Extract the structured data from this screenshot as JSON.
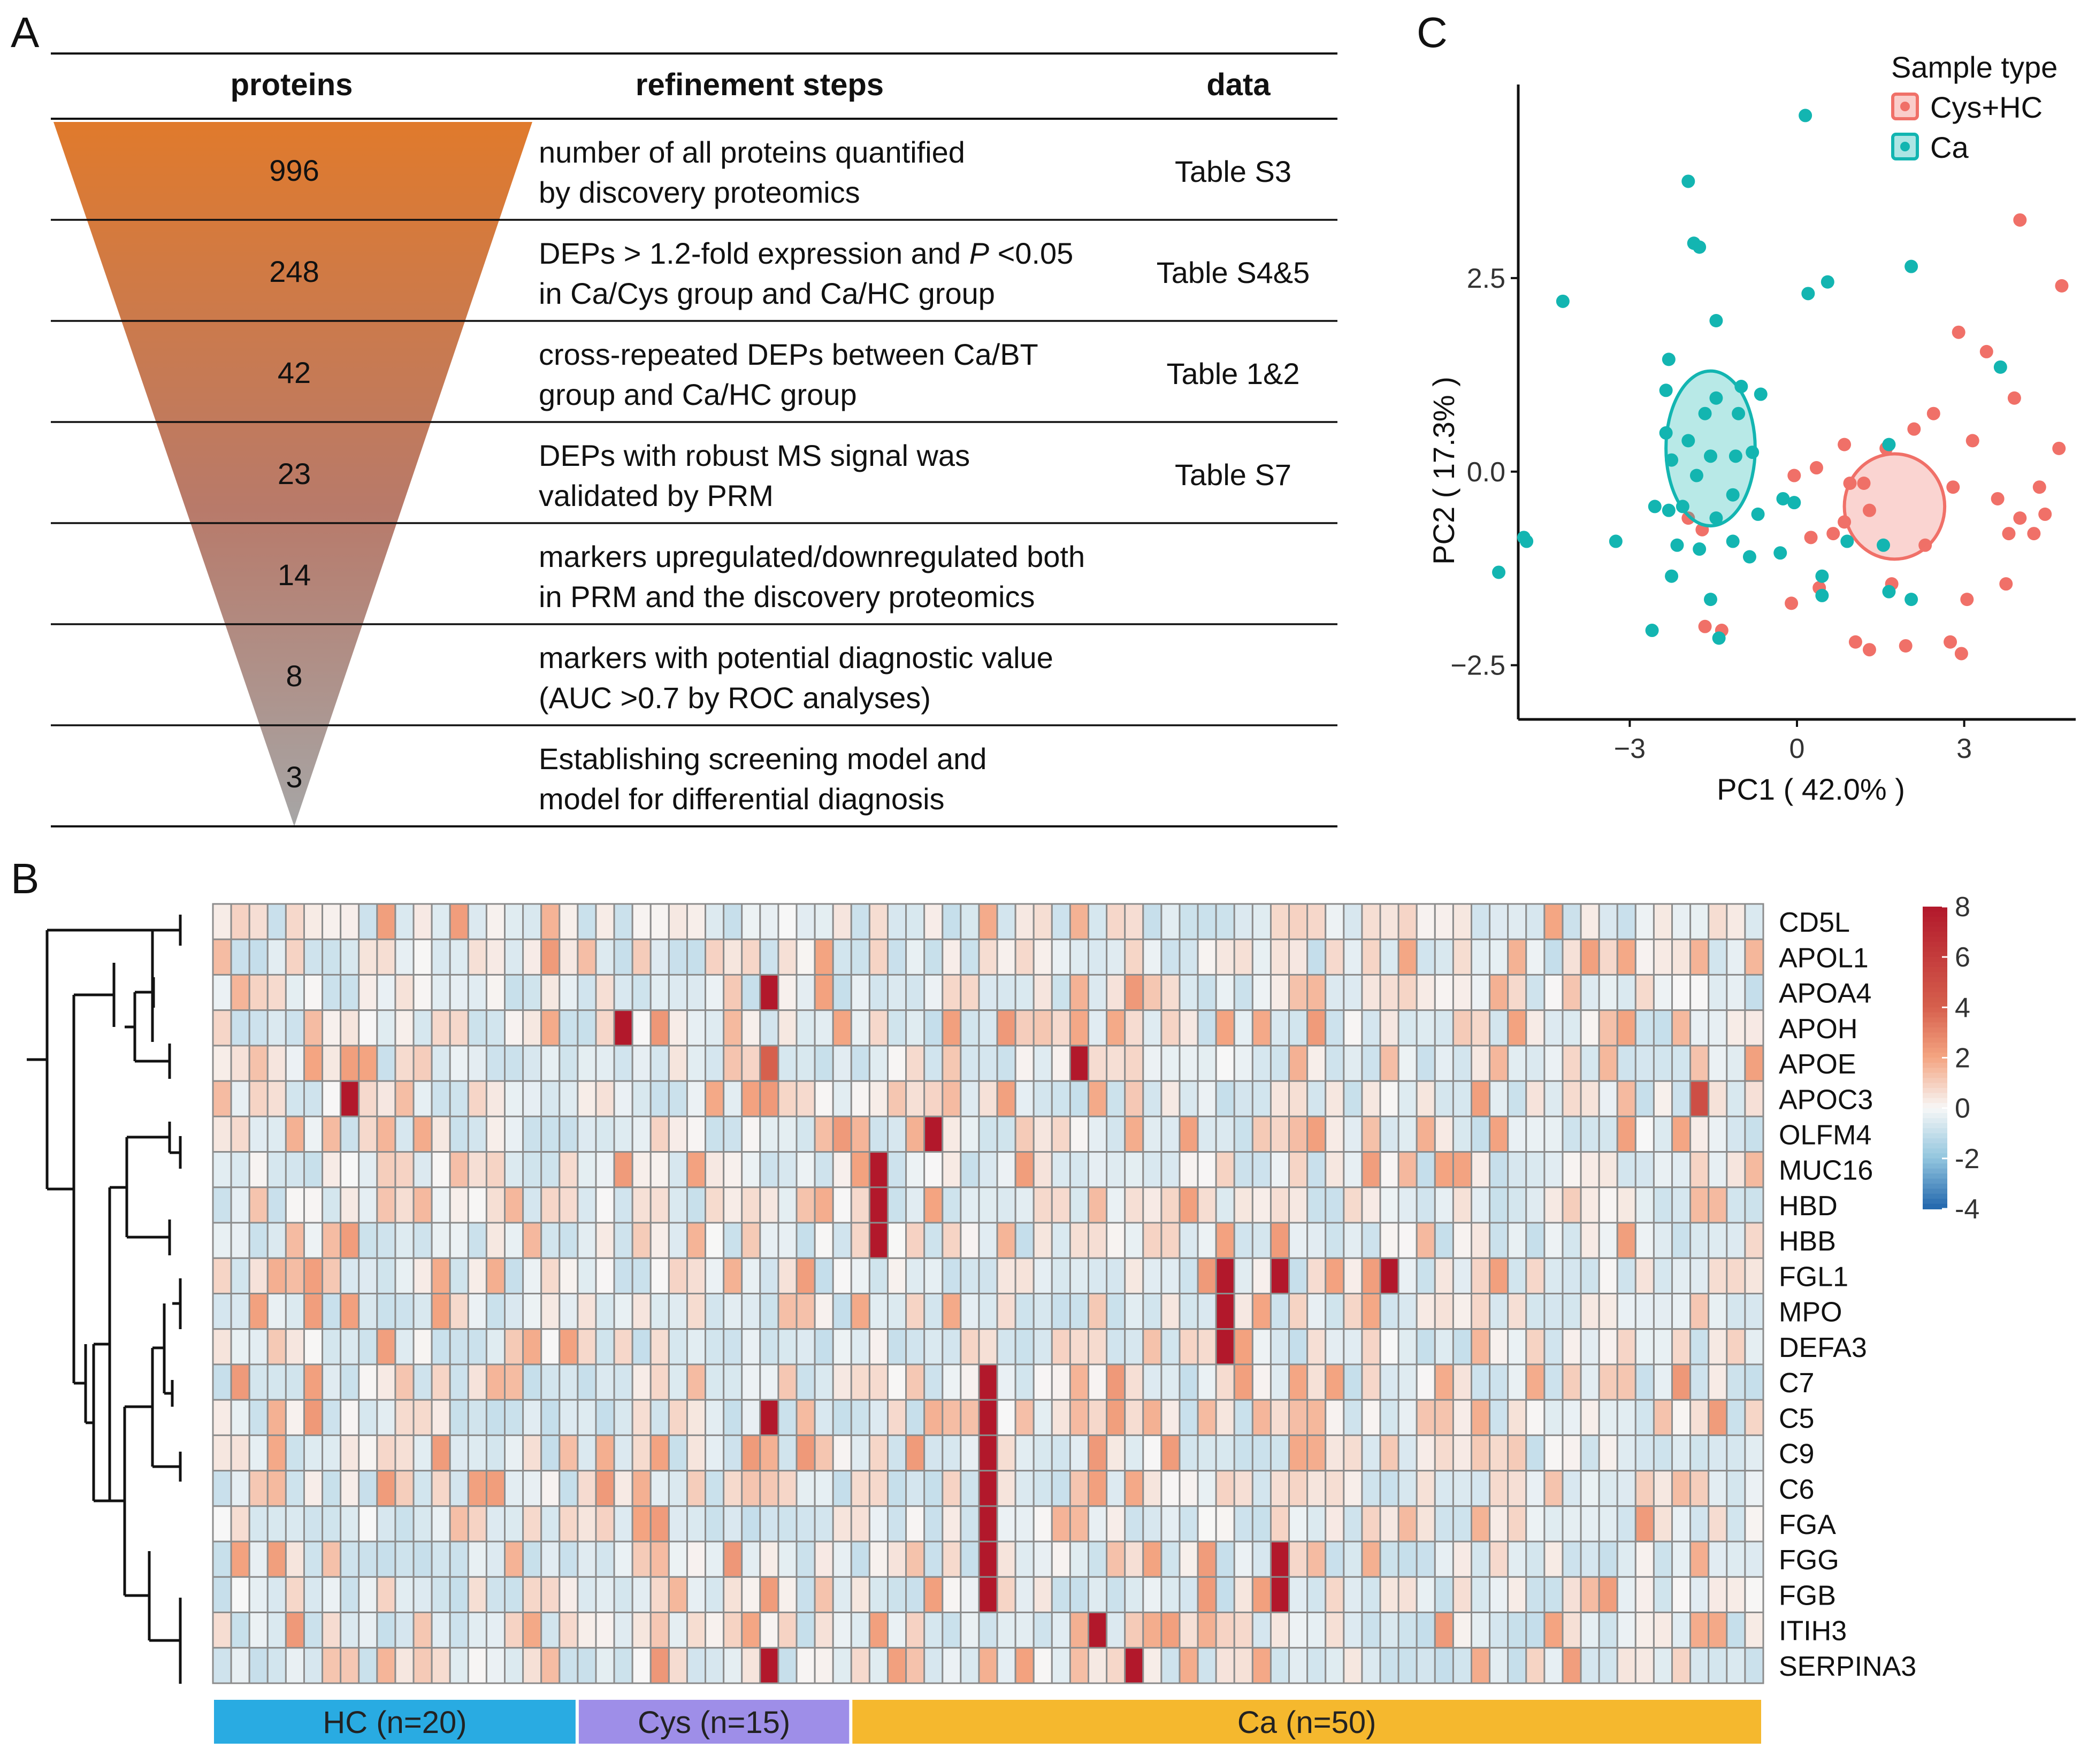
{
  "panels": {
    "a": "A",
    "b": "B",
    "c": "C"
  },
  "funnel_table": {
    "headers": {
      "proteins": "proteins",
      "steps": "refinement steps",
      "data": "data"
    },
    "rows": [
      {
        "count": "996",
        "line1": "number of all proteins quantified",
        "line2": "by discovery proteomics",
        "data": "Table S3"
      },
      {
        "count": "248",
        "line1_pre": "DEPs > 1.2-fold expression and ",
        "line1_italic": "P",
        "line1_post": " <0.05",
        "line2": "in Ca/Cys group and Ca/HC group",
        "data": "Table S4&5"
      },
      {
        "count": "42",
        "line1": "cross-repeated DEPs between Ca/BT",
        "line2": "group and Ca/HC group",
        "data": "Table 1&2"
      },
      {
        "count": "23",
        "line1": "DEPs with robust MS signal was",
        "line2": "validated by PRM",
        "data": "Table S7"
      },
      {
        "count": "14",
        "line1": "markers upregulated/downregulated both",
        "line2": "in PRM and the discovery proteomics",
        "data": ""
      },
      {
        "count": "8",
        "line1": "markers with potential diagnostic value",
        "line2": "(AUC >0.7 by ROC analyses)",
        "data": ""
      },
      {
        "count": "3",
        "line1": "Establishing screening model and",
        "line2": "model for differential diagnosis",
        "data": ""
      }
    ],
    "colors": {
      "top": "#E07A2C",
      "bottom": "#A6A6A6"
    }
  },
  "chart_data": [
    {
      "type": "scatter",
      "title": "",
      "xlabel": "PC1 ( 42.0% )",
      "ylabel": "PC2 ( 17.3% )",
      "xlim": [
        -5.0,
        5.0
      ],
      "ylim": [
        -3.2,
        5.0
      ],
      "xticks": [
        -3,
        0,
        3
      ],
      "yticks": [
        -2.5,
        0.0,
        2.5
      ],
      "xtick_labels": [
        "−3",
        "0",
        "3"
      ],
      "ytick_labels": [
        "−2.5",
        "0.0",
        "2.5"
      ],
      "legend": {
        "title": "Sample type",
        "position": "top-right"
      },
      "series": [
        {
          "name": "Cys+HC",
          "color": "#F07068",
          "ellipse": {
            "cx": 1.75,
            "cy": -0.45,
            "rx": 0.9,
            "ry": 0.68
          },
          "points": [
            [
              4.0,
              3.25
            ],
            [
              4.75,
              2.4
            ],
            [
              2.9,
              1.8
            ],
            [
              3.4,
              1.55
            ],
            [
              3.9,
              0.95
            ],
            [
              4.7,
              0.3
            ],
            [
              4.35,
              -0.2
            ],
            [
              2.45,
              0.75
            ],
            [
              3.15,
              0.4
            ],
            [
              1.6,
              0.3
            ],
            [
              0.85,
              0.35
            ],
            [
              2.1,
              0.55
            ],
            [
              -0.05,
              -0.05
            ],
            [
              0.35,
              0.05
            ],
            [
              0.95,
              -0.15
            ],
            [
              1.2,
              -0.15
            ],
            [
              2.8,
              -0.2
            ],
            [
              3.6,
              -0.35
            ],
            [
              4.45,
              -0.55
            ],
            [
              4.0,
              -0.6
            ],
            [
              3.8,
              -0.8
            ],
            [
              4.25,
              -0.8
            ],
            [
              2.3,
              -0.95
            ],
            [
              0.25,
              -0.85
            ],
            [
              0.65,
              -0.8
            ],
            [
              0.85,
              -0.65
            ],
            [
              1.3,
              -0.5
            ],
            [
              3.75,
              -1.45
            ],
            [
              1.7,
              -1.45
            ],
            [
              3.05,
              -1.65
            ],
            [
              0.4,
              -1.5
            ],
            [
              -0.1,
              -1.7
            ],
            [
              1.3,
              -2.3
            ],
            [
              1.95,
              -2.25
            ],
            [
              2.75,
              -2.2
            ],
            [
              2.95,
              -2.35
            ],
            [
              -1.65,
              -2.0
            ],
            [
              -1.35,
              -2.05
            ],
            [
              1.05,
              -2.2
            ],
            [
              -1.7,
              -0.75
            ],
            [
              -1.95,
              -0.6
            ]
          ]
        },
        {
          "name": "Ca",
          "color": "#13B5B1",
          "ellipse": {
            "cx": -1.55,
            "cy": 0.3,
            "rx": 0.8,
            "ry": 1.0
          },
          "points": [
            [
              0.15,
              4.6
            ],
            [
              -1.95,
              3.75
            ],
            [
              -1.85,
              2.95
            ],
            [
              -1.75,
              2.9
            ],
            [
              -4.2,
              2.2
            ],
            [
              0.55,
              2.45
            ],
            [
              -1.45,
              1.95
            ],
            [
              2.05,
              2.65
            ],
            [
              0.2,
              2.3
            ],
            [
              -2.3,
              1.45
            ],
            [
              -2.35,
              1.05
            ],
            [
              -1.0,
              1.1
            ],
            [
              -0.65,
              1.0
            ],
            [
              -1.45,
              0.95
            ],
            [
              -1.65,
              0.75
            ],
            [
              -1.05,
              0.75
            ],
            [
              -2.35,
              0.5
            ],
            [
              -1.95,
              0.4
            ],
            [
              -2.25,
              0.15
            ],
            [
              -1.55,
              0.2
            ],
            [
              -1.1,
              0.2
            ],
            [
              -0.8,
              0.25
            ],
            [
              -1.8,
              -0.05
            ],
            [
              -0.25,
              -0.35
            ],
            [
              -0.05,
              -0.4
            ],
            [
              1.65,
              0.35
            ],
            [
              -2.05,
              -0.45
            ],
            [
              -1.15,
              -0.3
            ],
            [
              -1.45,
              -0.6
            ],
            [
              -0.7,
              -0.55
            ],
            [
              -2.55,
              -0.45
            ],
            [
              -2.3,
              -0.5
            ],
            [
              -1.15,
              -0.9
            ],
            [
              -1.75,
              -1.0
            ],
            [
              -0.85,
              -1.1
            ],
            [
              -4.85,
              -0.9
            ],
            [
              -4.9,
              -0.85
            ],
            [
              -5.35,
              -1.3
            ],
            [
              -3.25,
              -0.9
            ],
            [
              -2.15,
              -0.95
            ],
            [
              -2.25,
              -1.35
            ],
            [
              1.55,
              -0.95
            ],
            [
              1.65,
              -1.55
            ],
            [
              2.05,
              -1.65
            ],
            [
              0.45,
              -1.35
            ],
            [
              -0.3,
              -1.05
            ],
            [
              -1.55,
              -1.65
            ],
            [
              0.45,
              -1.6
            ],
            [
              -2.6,
              -2.05
            ],
            [
              -1.4,
              -2.15
            ],
            [
              3.65,
              1.35
            ],
            [
              0.9,
              -0.9
            ]
          ]
        }
      ]
    },
    {
      "type": "heatmap",
      "rows": [
        "CD5L",
        "APOL1",
        "APOA4",
        "APOH",
        "APOE",
        "APOC3",
        "OLFM4",
        "MUC16",
        "HBD",
        "HBB",
        "FGL1",
        "MPO",
        "DEFA3",
        "C7",
        "C5",
        "C9",
        "C6",
        "FGA",
        "FGG",
        "FGB",
        "ITIH3",
        "SERPINA3"
      ],
      "groups": [
        {
          "label": "HC (n=20)",
          "n": 20,
          "color": "#29ABE2"
        },
        {
          "label": "Cys (n=15)",
          "n": 15,
          "color": "#9E8EE8"
        },
        {
          "label": "Ca (n=50)",
          "n": 50,
          "color": "#F5B82E"
        }
      ],
      "colorbar": {
        "min": -4,
        "max": 8,
        "ticks": [
          "8",
          "6",
          "4",
          "2",
          "0",
          "-2",
          "-4"
        ]
      },
      "highlights": [
        {
          "row": "APOA4",
          "col": 30,
          "value": 8
        },
        {
          "row": "APOH",
          "col": 22,
          "value": 8
        },
        {
          "row": "APOE",
          "col": 30,
          "value": 4
        },
        {
          "row": "APOE",
          "col": 47,
          "value": 8
        },
        {
          "row": "APOC3",
          "col": 7,
          "value": 8
        },
        {
          "row": "APOC3",
          "col": 81,
          "value": 5
        },
        {
          "row": "OLFM4",
          "col": 39,
          "value": 8
        },
        {
          "row": "MUC16",
          "col": 36,
          "value": 8
        },
        {
          "row": "HBD",
          "col": 36,
          "value": 8
        },
        {
          "row": "HBB",
          "col": 36,
          "value": 8
        },
        {
          "row": "FGL1",
          "col": 55,
          "value": 8
        },
        {
          "row": "FGL1",
          "col": 58,
          "value": 8
        },
        {
          "row": "FGL1",
          "col": 64,
          "value": 8
        },
        {
          "row": "MPO",
          "col": 55,
          "value": 8
        },
        {
          "row": "DEFA3",
          "col": 55,
          "value": 8
        },
        {
          "row": "C7",
          "col": 42,
          "value": 8
        },
        {
          "row": "C5",
          "col": 30,
          "value": 8
        },
        {
          "row": "C5",
          "col": 42,
          "value": 8
        },
        {
          "row": "C9",
          "col": 42,
          "value": 8
        },
        {
          "row": "C6",
          "col": 42,
          "value": 8
        },
        {
          "row": "FGA",
          "col": 42,
          "value": 8
        },
        {
          "row": "FGG",
          "col": 42,
          "value": 8
        },
        {
          "row": "FGG",
          "col": 58,
          "value": 8
        },
        {
          "row": "FGB",
          "col": 42,
          "value": 8
        },
        {
          "row": "FGB",
          "col": 58,
          "value": 8
        },
        {
          "row": "ITIH3",
          "col": 48,
          "value": 8
        },
        {
          "row": "SERPINA3",
          "col": 30,
          "value": 8
        },
        {
          "row": "SERPINA3",
          "col": 50,
          "value": 8
        }
      ]
    }
  ]
}
